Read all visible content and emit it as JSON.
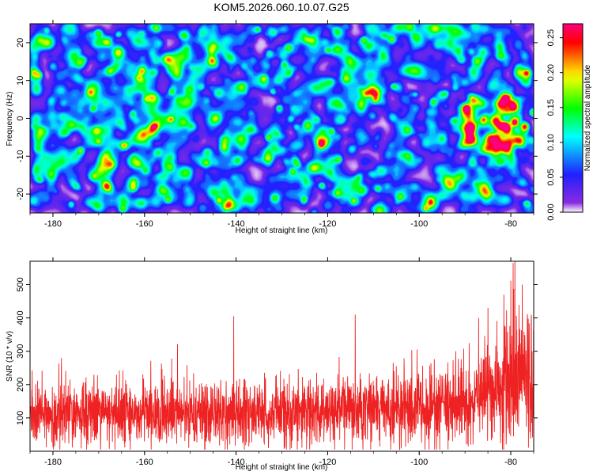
{
  "title": "KOM5.2026.060.10.07.G25",
  "chart_data": [
    {
      "type": "heatmap",
      "name": "spectrogram",
      "xlabel": "Height of straight line (km)",
      "ylabel": "Frequency (Hz)",
      "xlim": [
        -185,
        -75
      ],
      "ylim": [
        -25,
        25
      ],
      "x_ticks": [
        -180,
        -160,
        -140,
        -120,
        -100,
        -80
      ],
      "x_tick_labels": [
        "-180",
        "-160",
        "-140",
        "-120",
        "-100",
        "-80"
      ],
      "y_ticks": [
        -20,
        -10,
        0,
        10,
        20
      ],
      "y_tick_labels": [
        "-20",
        "-10",
        "0",
        "10",
        "20"
      ],
      "colorbar": {
        "label": "Normalized spectral amplitude",
        "range": [
          0,
          0.27
        ],
        "ticks": [
          0.0,
          0.05,
          0.1,
          0.15,
          0.2,
          0.25
        ],
        "tick_labels": [
          "0.00",
          "0.05",
          "0.10",
          "0.15",
          "0.20",
          "0.25"
        ],
        "stops": [
          "#ffffff",
          "#8a2be2",
          "#2020ff",
          "#00ffff",
          "#00ff00",
          "#ffff00",
          "#ff0000",
          "#ff007f"
        ]
      },
      "background_level": 0.03,
      "hotspot": {
        "x": -77,
        "y": -2,
        "peak": 0.26
      }
    },
    {
      "type": "line",
      "name": "snr",
      "xlabel": "Height of straight line (km)",
      "ylabel": "SNR (10 * v/v)",
      "xlim": [
        -185,
        -75
      ],
      "ylim": [
        0,
        570
      ],
      "x_ticks": [
        -180,
        -160,
        -140,
        -120,
        -100,
        -80
      ],
      "x_tick_labels": [
        "-180",
        "-160",
        "-140",
        "-120",
        "-100",
        "-80"
      ],
      "y_ticks": [
        100,
        200,
        300,
        400,
        500
      ],
      "y_tick_labels": [
        "100",
        "200",
        "300",
        "400",
        "500"
      ],
      "color": "#ee2222",
      "series": [
        {
          "name": "SNR",
          "x": [
            -185,
            -180,
            -175,
            -170,
            -165,
            -160,
            -155,
            -150,
            -145,
            -140,
            -135,
            -130,
            -125,
            -120,
            -115,
            -110,
            -105,
            -100,
            -95,
            -90,
            -85,
            -82,
            -80,
            -78,
            -75
          ],
          "values": [
            110,
            110,
            112,
            114,
            115,
            115,
            114,
            113,
            113,
            115,
            116,
            116,
            117,
            118,
            119,
            120,
            122,
            126,
            135,
            150,
            175,
            200,
            230,
            220,
            210
          ]
        }
      ],
      "notable_peaks": [
        {
          "x": -140.5,
          "y": 405
        },
        {
          "x": -114,
          "y": 410
        },
        {
          "x": -100.5,
          "y": 305
        },
        {
          "x": -92,
          "y": 300
        },
        {
          "x": -85,
          "y": 430
        },
        {
          "x": -81.5,
          "y": 470
        },
        {
          "x": -79.5,
          "y": 565
        },
        {
          "x": -77.5,
          "y": 500
        },
        {
          "x": -75.5,
          "y": 410
        }
      ]
    }
  ]
}
